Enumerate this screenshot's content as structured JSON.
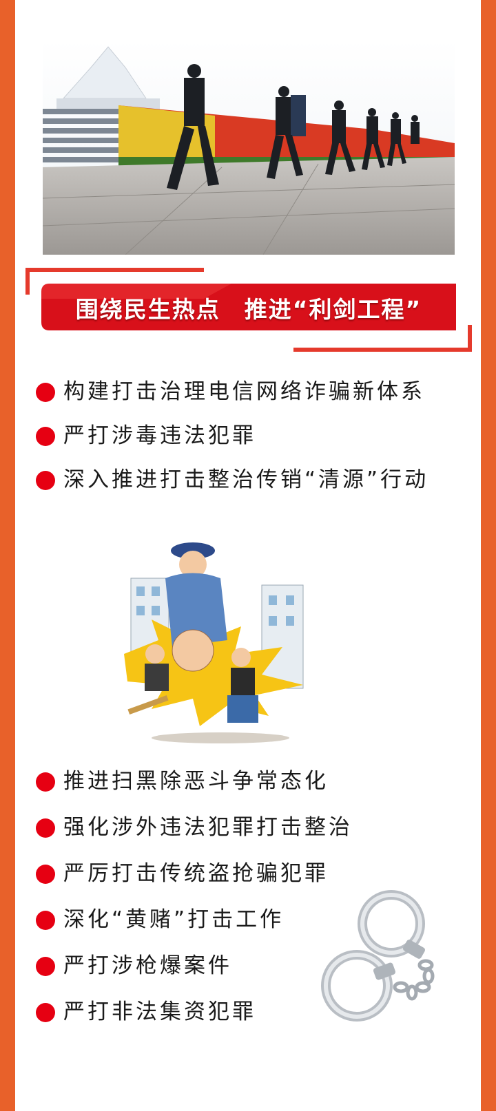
{
  "banner": {
    "title": "围绕民生热点　推进“利剑工程”"
  },
  "items_top": [
    {
      "text": "构建打击治理电信网络诈骗新体系"
    },
    {
      "text": "严打涉毒违法犯罪"
    },
    {
      "text": "深入推进打击整治传销“清源”行动"
    }
  ],
  "items_bottom": [
    {
      "text": "推进扫黑除恶斗争常态化"
    },
    {
      "text": "强化涉外违法犯罪打击整治"
    },
    {
      "text": "严厉打击传统盗抢骗犯罪"
    },
    {
      "text": "深化“黄赌”打击工作"
    },
    {
      "text": "严打涉枪爆案件"
    },
    {
      "text": "严打非法集资犯罪"
    }
  ],
  "colors": {
    "border": "#e8612a",
    "banner": "#d8101a",
    "bullet": "#e60012",
    "text": "#1a1a1a"
  },
  "icons": {
    "bullet": "red-dot",
    "photo": "police-patrol-photo",
    "cartoon": "police-arrest-cartoon",
    "cuffs": "handcuffs-icon"
  }
}
